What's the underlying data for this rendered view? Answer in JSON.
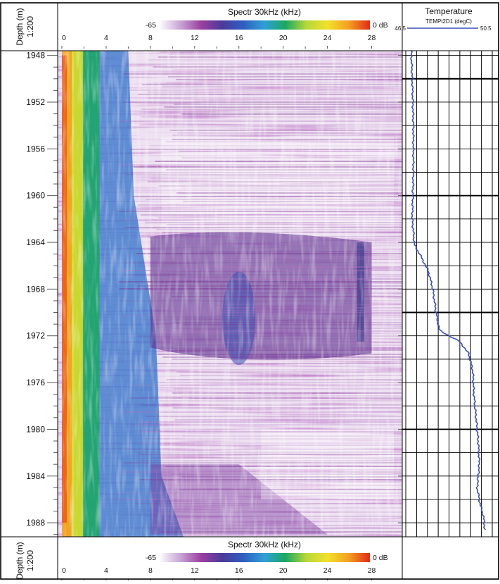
{
  "chart_data": {
    "type": "heatmap",
    "depth_track": {
      "label_line1": "Depth (m)",
      "label_line2": "1:200",
      "ticks": [
        1948,
        1952,
        1956,
        1960,
        1964,
        1968,
        1972,
        1976,
        1980,
        1984,
        1988
      ],
      "ylim": [
        1947.6,
        1989.2
      ]
    },
    "spectrum_track": {
      "title": "Spectr 30kHz (kHz)",
      "scale_min_label": "-65",
      "scale_max_label": "0 dB",
      "xticks": [
        0,
        4,
        8,
        12,
        16,
        20,
        24,
        28
      ],
      "xlim": [
        0,
        30
      ],
      "colormap": [
        "#ffffff",
        "#c9a6d6",
        "#9b3fa0",
        "#4a3a9a",
        "#2e5fc0",
        "#2f9fd8",
        "#1aa860",
        "#b8d838",
        "#f2e02a",
        "#f4a020",
        "#e02a1a"
      ],
      "features": [
        {
          "name": "low-frequency-band",
          "x": [
            0,
            3
          ],
          "level": "high"
        },
        {
          "name": "flow-noise-anomaly",
          "depth": [
            1963.5,
            1973.5
          ],
          "x": [
            12,
            28
          ]
        },
        {
          "name": "narrow-band-27khz",
          "depth": [
            1964,
            1972.5
          ],
          "x": 27
        },
        {
          "name": "lower-anomaly",
          "depth": [
            1983,
            1989
          ],
          "x": [
            8,
            16
          ]
        }
      ]
    },
    "temperature_track": {
      "title": "Temperature",
      "curve_label": "TEMPt2D1 (degC)",
      "scale_min_label": "46.5",
      "scale_max_label": "50.5",
      "xlim": [
        46.5,
        50.5
      ],
      "line_color": "#3a4fb8",
      "depth": [
        1947.6,
        1950,
        1954,
        1958,
        1962,
        1964.2,
        1965.2,
        1966.5,
        1968,
        1970,
        1971.5,
        1972,
        1972.5,
        1973.5,
        1975,
        1977,
        1979,
        1981,
        1983,
        1985,
        1986.5,
        1987.5,
        1988.6
      ],
      "temp": [
        46.75,
        46.8,
        46.85,
        46.85,
        46.8,
        46.9,
        47.2,
        47.55,
        47.75,
        47.9,
        48.05,
        48.5,
        49.0,
        49.4,
        49.6,
        49.65,
        49.75,
        49.85,
        49.9,
        49.8,
        49.95,
        50.1,
        50.15
      ]
    }
  }
}
